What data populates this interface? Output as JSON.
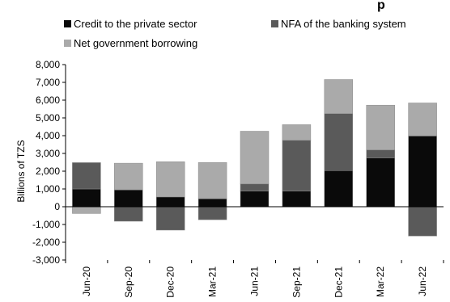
{
  "header_fragment": "p",
  "chart_data": {
    "type": "bar",
    "stacked": true,
    "categories": [
      "Jun-20",
      "Sep-20",
      "Dec-20",
      "Mar-21",
      "Jun-21",
      "Sep-21",
      "Dec-21",
      "Mar-22",
      "Jun-22"
    ],
    "series": [
      {
        "name": "Credit to the private sector",
        "color": "#0a0a0a",
        "values": [
          1000,
          950,
          550,
          450,
          880,
          880,
          2030,
          2750,
          3980
        ]
      },
      {
        "name": "NFA of the banking system",
        "color": "#5a5a5a",
        "values": [
          1480,
          -820,
          -1320,
          -730,
          400,
          2860,
          3210,
          450,
          -1650
        ]
      },
      {
        "name": "Net government borrowing",
        "color": "#aaaaaa",
        "values": [
          -380,
          1500,
          1980,
          2040,
          2970,
          880,
          1920,
          2520,
          1860
        ]
      }
    ],
    "ylabel": "Billions of TZS",
    "ylim": [
      -3000,
      8000
    ],
    "yticks": [
      "8,000",
      "7,000",
      "6,000",
      "5,000",
      "4,000",
      "3,000",
      "2,000",
      "1,000",
      "0",
      "-1,000",
      "-2,000",
      "-3,000"
    ],
    "grid": false,
    "legend_position": "top"
  }
}
